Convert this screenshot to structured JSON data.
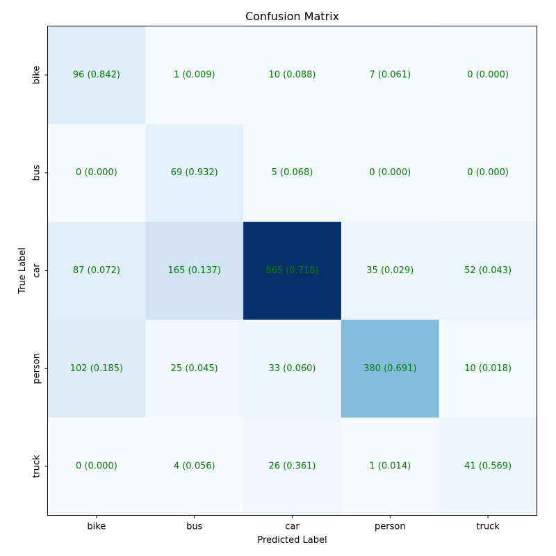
{
  "chart_data": {
    "type": "heatmap",
    "title": "Confusion Matrix",
    "xlabel": "Predicted Label",
    "ylabel": "True Label",
    "x_categories": [
      "bike",
      "bus",
      "car",
      "person",
      "truck"
    ],
    "y_categories": [
      "bike",
      "bus",
      "car",
      "person",
      "truck"
    ],
    "counts": [
      [
        96,
        1,
        10,
        7,
        0
      ],
      [
        0,
        69,
        5,
        0,
        0
      ],
      [
        87,
        165,
        865,
        35,
        52
      ],
      [
        102,
        25,
        33,
        380,
        10
      ],
      [
        0,
        4,
        26,
        1,
        41
      ]
    ],
    "labels": [
      [
        "96 (0.842)",
        "1 (0.009)",
        "10 (0.088)",
        "7 (0.061)",
        "0 (0.000)"
      ],
      [
        "0 (0.000)",
        "69 (0.932)",
        "5 (0.068)",
        "0 (0.000)",
        "0 (0.000)"
      ],
      [
        "87 (0.072)",
        "165 (0.137)",
        "865 (0.718)",
        "35 (0.029)",
        "52 (0.043)"
      ],
      [
        "102 (0.185)",
        "25 (0.045)",
        "33 (0.060)",
        "380 (0.691)",
        "10 (0.018)"
      ],
      [
        "0 (0.000)",
        "4 (0.056)",
        "26 (0.361)",
        "1 (0.014)",
        "41 (0.569)"
      ]
    ],
    "colormap": "Blues",
    "text_color": "#008000",
    "grid": false,
    "colorbar": false
  }
}
